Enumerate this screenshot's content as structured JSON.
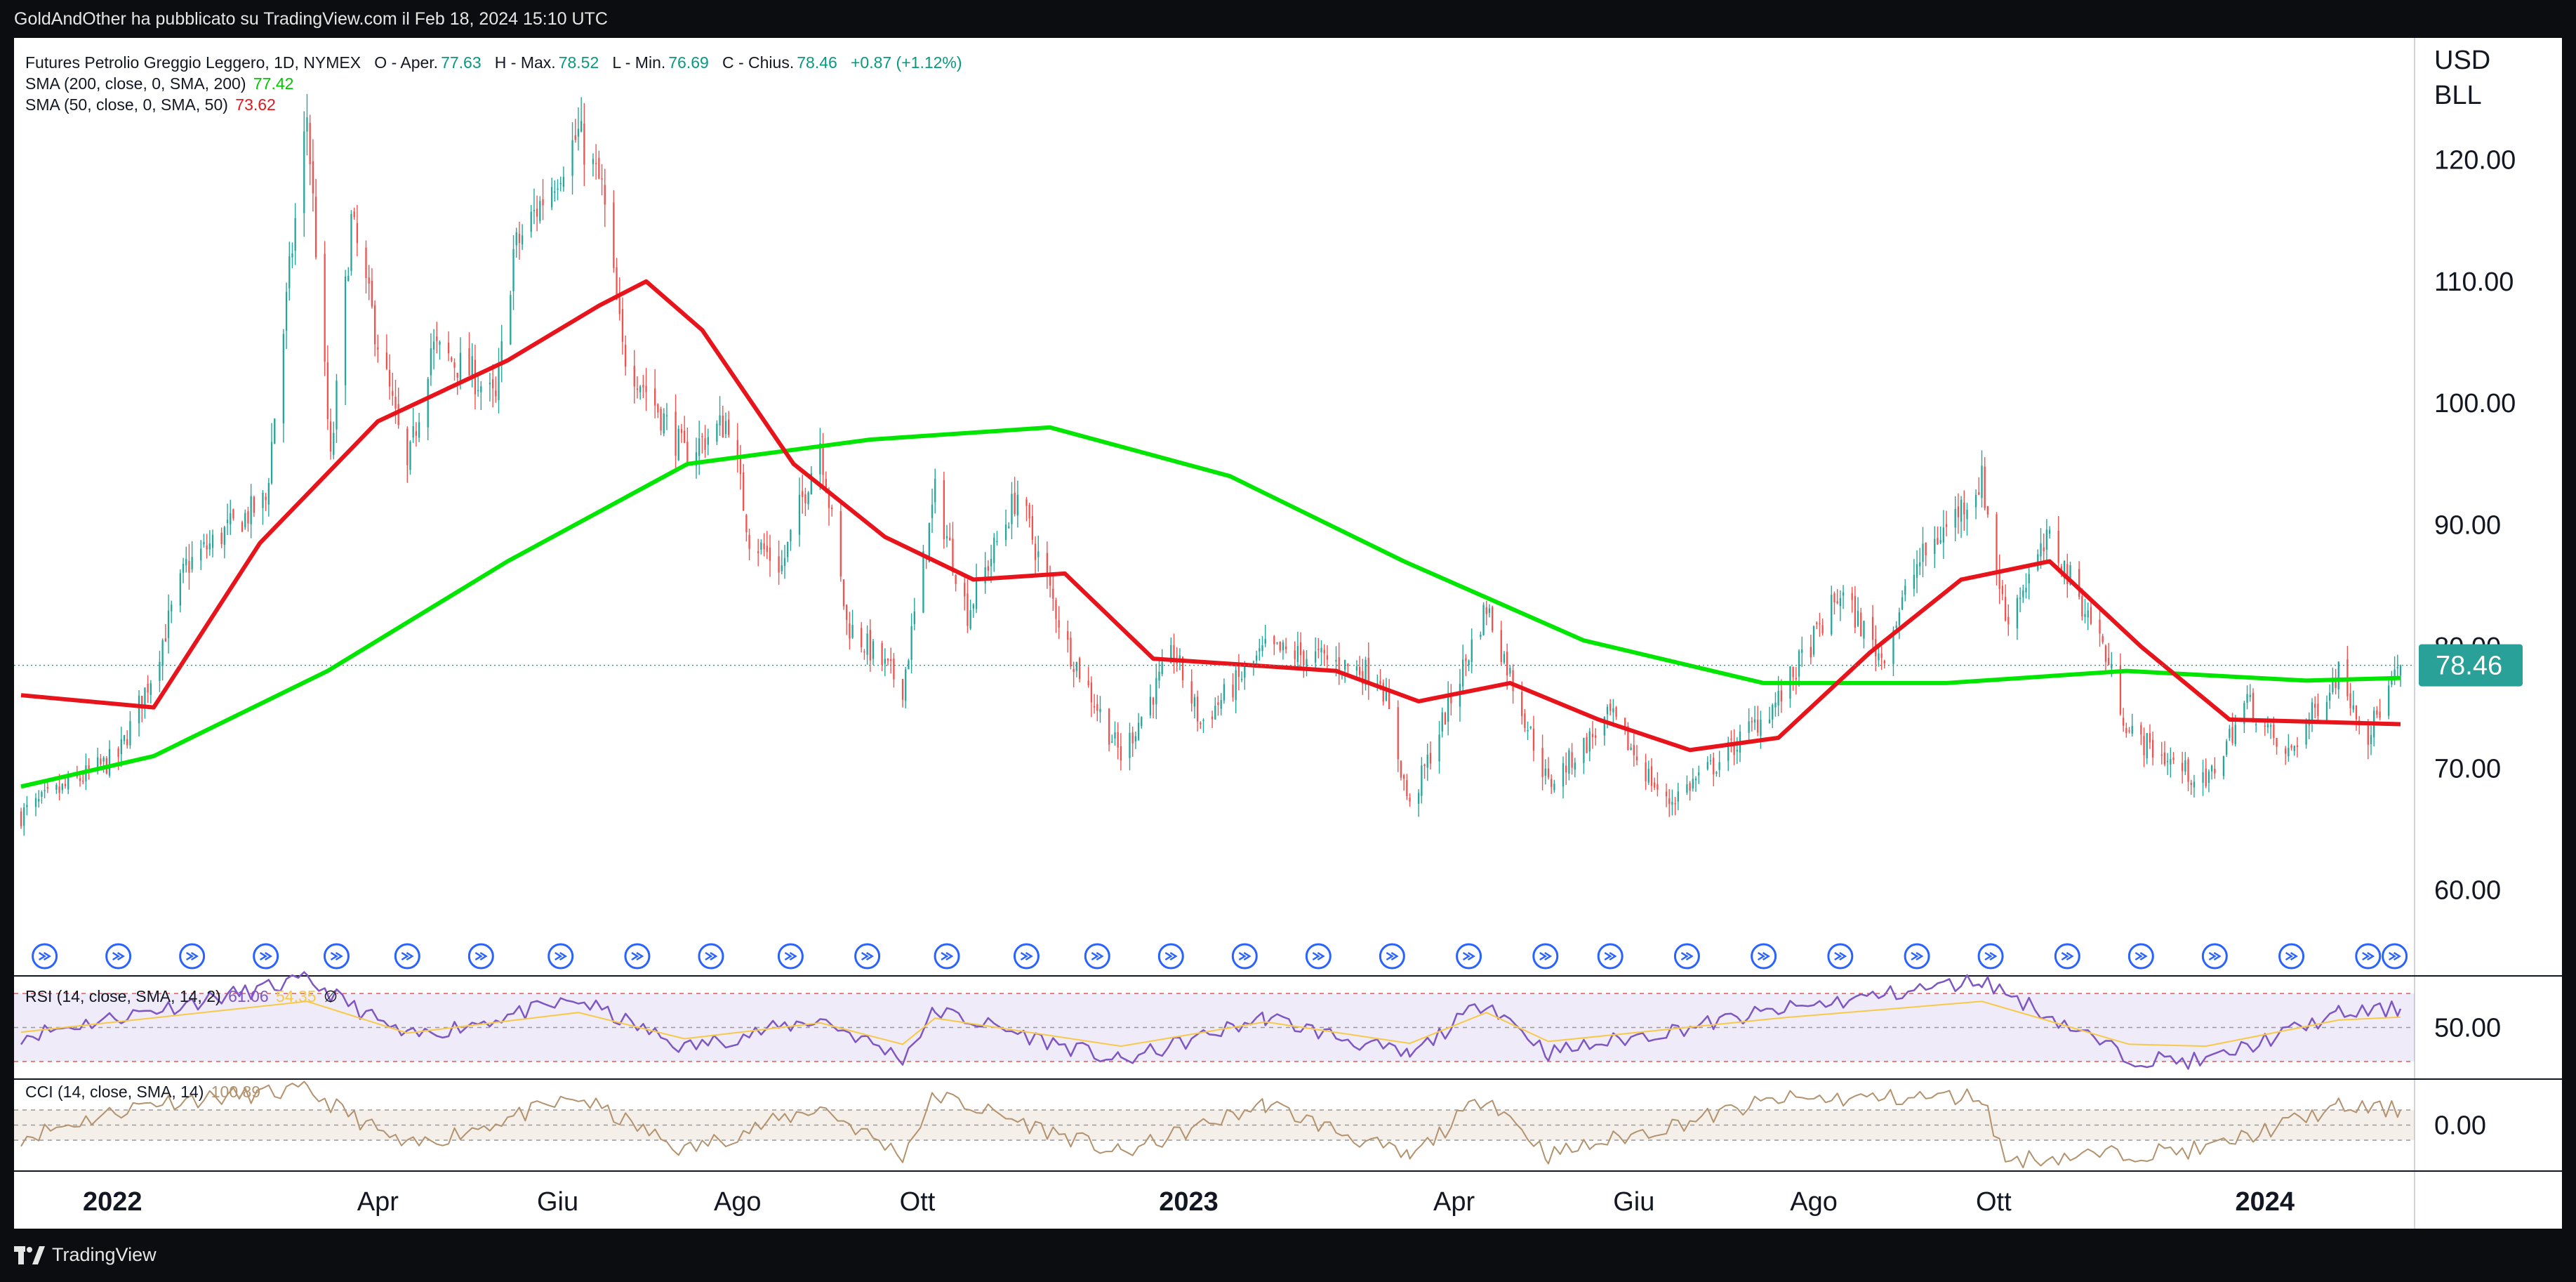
{
  "header": {
    "publisher_text": "GoldAndOther ha pubblicato su TradingView.com il Feb 18, 2024 15:10 UTC"
  },
  "legend": {
    "symbol": "Futures Petrolio Greggio Leggero, 1D, NYMEX",
    "o_label": "O - Aper.",
    "o_value": "77.63",
    "h_label": "H - Max.",
    "h_value": "78.52",
    "l_label": "L - Min.",
    "l_value": "76.69",
    "c_label": "C - Chius.",
    "c_value": "78.46",
    "change": "+0.87 (+1.12%)",
    "sma200_label": "SMA (200, close, 0, SMA, 200)",
    "sma200_value": "77.42",
    "sma50_label": "SMA (50, close, 0, SMA, 50)",
    "sma50_value": "73.62",
    "rsi_label": "RSI (14, close, SMA, 14, 2)",
    "rsi_value": "61.06",
    "rsi_ma_value": "54.35",
    "rsi_extra": "∅",
    "cci_label": "CCI (14, close, SMA, 14)",
    "cci_value": "100.89"
  },
  "price_axis": {
    "unit_line1": "USD",
    "unit_line2": "BLL",
    "current_price": "78.46"
  },
  "rsi_axis_label": "50.00",
  "cci_axis_label": "0.00",
  "footer": {
    "brand": "TradingView"
  },
  "colors": {
    "up": "#26a69a",
    "down": "#ef5350",
    "sma200": "#00e600",
    "sma50": "#e8141c",
    "rsi": "#7e57c2",
    "rsi_ma": "#f7c948",
    "cci": "#b3926d",
    "price_badge": "#2aa198"
  },
  "chart_data": [
    {
      "type": "candlestick",
      "title": "Futures Petrolio Greggio Leggero, 1D, NYMEX",
      "x_ticks": [
        {
          "label": "2022",
          "bold": true
        },
        {
          "label": "Apr"
        },
        {
          "label": "Giu"
        },
        {
          "label": "Ago"
        },
        {
          "label": "Ott"
        },
        {
          "label": "2023",
          "bold": true
        },
        {
          "label": "Apr"
        },
        {
          "label": "Giu"
        },
        {
          "label": "Ago"
        },
        {
          "label": "Ott"
        },
        {
          "label": "2024",
          "bold": true
        }
      ],
      "y_ticks": [
        "120.00",
        "110.00",
        "100.00",
        "90.00",
        "80.00",
        "70.00",
        "60.00"
      ],
      "ylim": [
        53,
        130
      ],
      "x_range": [
        "2021-12-01",
        "2024-02-16"
      ],
      "close_path": [
        [
          "2021-12-01",
          66.2
        ],
        [
          "2021-12-20",
          69.0
        ],
        [
          "2022-01-03",
          71.0
        ],
        [
          "2022-01-14",
          77.5
        ],
        [
          "2022-01-26",
          86.6
        ],
        [
          "2022-02-08",
          89.4
        ],
        [
          "2022-02-22",
          92.0
        ],
        [
          "2022-03-02",
          110.6
        ],
        [
          "2022-03-08",
          123.7
        ],
        [
          "2022-03-16",
          95.0
        ],
        [
          "2022-03-23",
          114.9
        ],
        [
          "2022-04-11",
          94.3
        ],
        [
          "2022-04-19",
          104.6
        ],
        [
          "2022-05-03",
          102.4
        ],
        [
          "2022-05-11",
          100.0
        ],
        [
          "2022-05-17",
          112.4
        ],
        [
          "2022-06-08",
          122.1
        ],
        [
          "2022-06-16",
          117.6
        ],
        [
          "2022-06-23",
          104.3
        ],
        [
          "2022-07-05",
          99.5
        ],
        [
          "2022-07-14",
          95.8
        ],
        [
          "2022-07-29",
          98.6
        ],
        [
          "2022-08-05",
          89.0
        ],
        [
          "2022-08-16",
          86.5
        ],
        [
          "2022-08-29",
          97.0
        ],
        [
          "2022-09-07",
          81.9
        ],
        [
          "2022-09-26",
          76.7
        ],
        [
          "2022-10-07",
          92.6
        ],
        [
          "2022-10-18",
          82.8
        ],
        [
          "2022-11-04",
          92.6
        ],
        [
          "2022-11-21",
          80.0
        ],
        [
          "2022-12-09",
          71.0
        ],
        [
          "2022-12-27",
          79.5
        ],
        [
          "2023-01-05",
          73.7
        ],
        [
          "2023-01-27",
          79.7
        ],
        [
          "2023-02-14",
          79.1
        ],
        [
          "2023-03-07",
          77.6
        ],
        [
          "2023-03-17",
          66.7
        ],
        [
          "2023-03-31",
          75.7
        ],
        [
          "2023-04-12",
          83.3
        ],
        [
          "2023-05-03",
          68.6
        ],
        [
          "2023-05-24",
          74.3
        ],
        [
          "2023-06-12",
          67.1
        ],
        [
          "2023-06-30",
          70.6
        ],
        [
          "2023-07-20",
          75.6
        ],
        [
          "2023-08-10",
          84.4
        ],
        [
          "2023-08-24",
          79.1
        ],
        [
          "2023-09-05",
          86.7
        ],
        [
          "2023-09-27",
          93.7
        ],
        [
          "2023-10-05",
          82.3
        ],
        [
          "2023-10-20",
          88.8
        ],
        [
          "2023-11-06",
          80.8
        ],
        [
          "2023-11-16",
          72.9
        ],
        [
          "2023-12-12",
          68.6
        ],
        [
          "2023-12-26",
          75.6
        ],
        [
          "2024-01-08",
          70.8
        ],
        [
          "2024-01-26",
          78.0
        ],
        [
          "2024-02-05",
          72.8
        ],
        [
          "2024-02-16",
          78.46
        ]
      ],
      "sma50": [
        [
          "2021-12-01",
          76.0
        ],
        [
          "2022-01-15",
          75.0
        ],
        [
          "2022-02-20",
          88.5
        ],
        [
          "2022-04-01",
          98.5
        ],
        [
          "2022-05-15",
          103.5
        ],
        [
          "2022-06-15",
          108.0
        ],
        [
          "2022-07-01",
          110.0
        ],
        [
          "2022-07-20",
          106.0
        ],
        [
          "2022-08-20",
          95.0
        ],
        [
          "2022-09-20",
          89.0
        ],
        [
          "2022-10-20",
          85.5
        ],
        [
          "2022-11-20",
          86.0
        ],
        [
          "2022-12-20",
          79.0
        ],
        [
          "2023-01-20",
          78.5
        ],
        [
          "2023-02-20",
          78.0
        ],
        [
          "2023-03-20",
          75.5
        ],
        [
          "2023-04-20",
          77.0
        ],
        [
          "2023-05-20",
          74.0
        ],
        [
          "2023-06-20",
          71.5
        ],
        [
          "2023-07-20",
          72.5
        ],
        [
          "2023-08-20",
          79.5
        ],
        [
          "2023-09-20",
          85.5
        ],
        [
          "2023-10-20",
          87.0
        ],
        [
          "2023-11-20",
          80.0
        ],
        [
          "2023-12-20",
          74.0
        ],
        [
          "2024-01-20",
          73.8
        ],
        [
          "2024-02-16",
          73.62
        ]
      ],
      "sma200": [
        [
          "2021-12-01",
          68.5
        ],
        [
          "2022-01-15",
          71.0
        ],
        [
          "2022-03-15",
          78.0
        ],
        [
          "2022-05-15",
          87.0
        ],
        [
          "2022-07-15",
          95.0
        ],
        [
          "2022-09-15",
          97.0
        ],
        [
          "2022-11-15",
          98.0
        ],
        [
          "2023-01-15",
          94.0
        ],
        [
          "2023-03-15",
          87.0
        ],
        [
          "2023-05-15",
          80.5
        ],
        [
          "2023-07-15",
          77.0
        ],
        [
          "2023-09-15",
          77.0
        ],
        [
          "2023-11-15",
          78.0
        ],
        [
          "2024-01-15",
          77.2
        ],
        [
          "2024-02-16",
          77.42
        ]
      ]
    },
    {
      "type": "line",
      "title": "RSI (14, close, SMA, 14, 2)",
      "ylim": [
        20,
        80
      ],
      "y_ticks": [
        "50.00"
      ],
      "bands": [
        30,
        50,
        70
      ],
      "rsi_path": [
        [
          "2021-12-01",
          45
        ],
        [
          "2022-01-14",
          60
        ],
        [
          "2022-03-08",
          78
        ],
        [
          "2022-04-11",
          44
        ],
        [
          "2022-06-08",
          66
        ],
        [
          "2022-07-14",
          38
        ],
        [
          "2022-08-29",
          55
        ],
        [
          "2022-09-26",
          32
        ],
        [
          "2022-10-07",
          60
        ],
        [
          "2022-12-09",
          30
        ],
        [
          "2023-01-27",
          56
        ],
        [
          "2023-03-17",
          33
        ],
        [
          "2023-04-12",
          66
        ],
        [
          "2023-05-03",
          35
        ],
        [
          "2023-07-20",
          60
        ],
        [
          "2023-09-27",
          78
        ],
        [
          "2023-11-16",
          32
        ],
        [
          "2023-12-12",
          30
        ],
        [
          "2024-01-26",
          58
        ],
        [
          "2024-02-16",
          61.06
        ]
      ]
    },
    {
      "type": "line",
      "title": "CCI (14, close, SMA, 14)",
      "ylim": [
        -300,
        300
      ],
      "y_ticks": [
        "0.00"
      ],
      "bands": [
        -100,
        0,
        100
      ],
      "cci_path": [
        [
          "2021-12-01",
          -80
        ],
        [
          "2022-01-14",
          150
        ],
        [
          "2022-03-08",
          230
        ],
        [
          "2022-04-11",
          -150
        ],
        [
          "2022-06-08",
          180
        ],
        [
          "2022-07-14",
          -170
        ],
        [
          "2022-08-29",
          120
        ],
        [
          "2022-09-26",
          -200
        ],
        [
          "2022-10-07",
          200
        ],
        [
          "2022-12-09",
          -190
        ],
        [
          "2023-01-27",
          140
        ],
        [
          "2023-03-17",
          -220
        ],
        [
          "2023-04-12",
          200
        ],
        [
          "2023-05-03",
          -200
        ],
        [
          "2023-07-20",
          170
        ],
        [
          "2023-09-27",
          190
        ],
        [
          "2023-10-05",
          -230
        ],
        [
          "2023-12-12",
          -160
        ],
        [
          "2024-01-26",
          120
        ],
        [
          "2024-02-16",
          100.89
        ]
      ]
    }
  ]
}
